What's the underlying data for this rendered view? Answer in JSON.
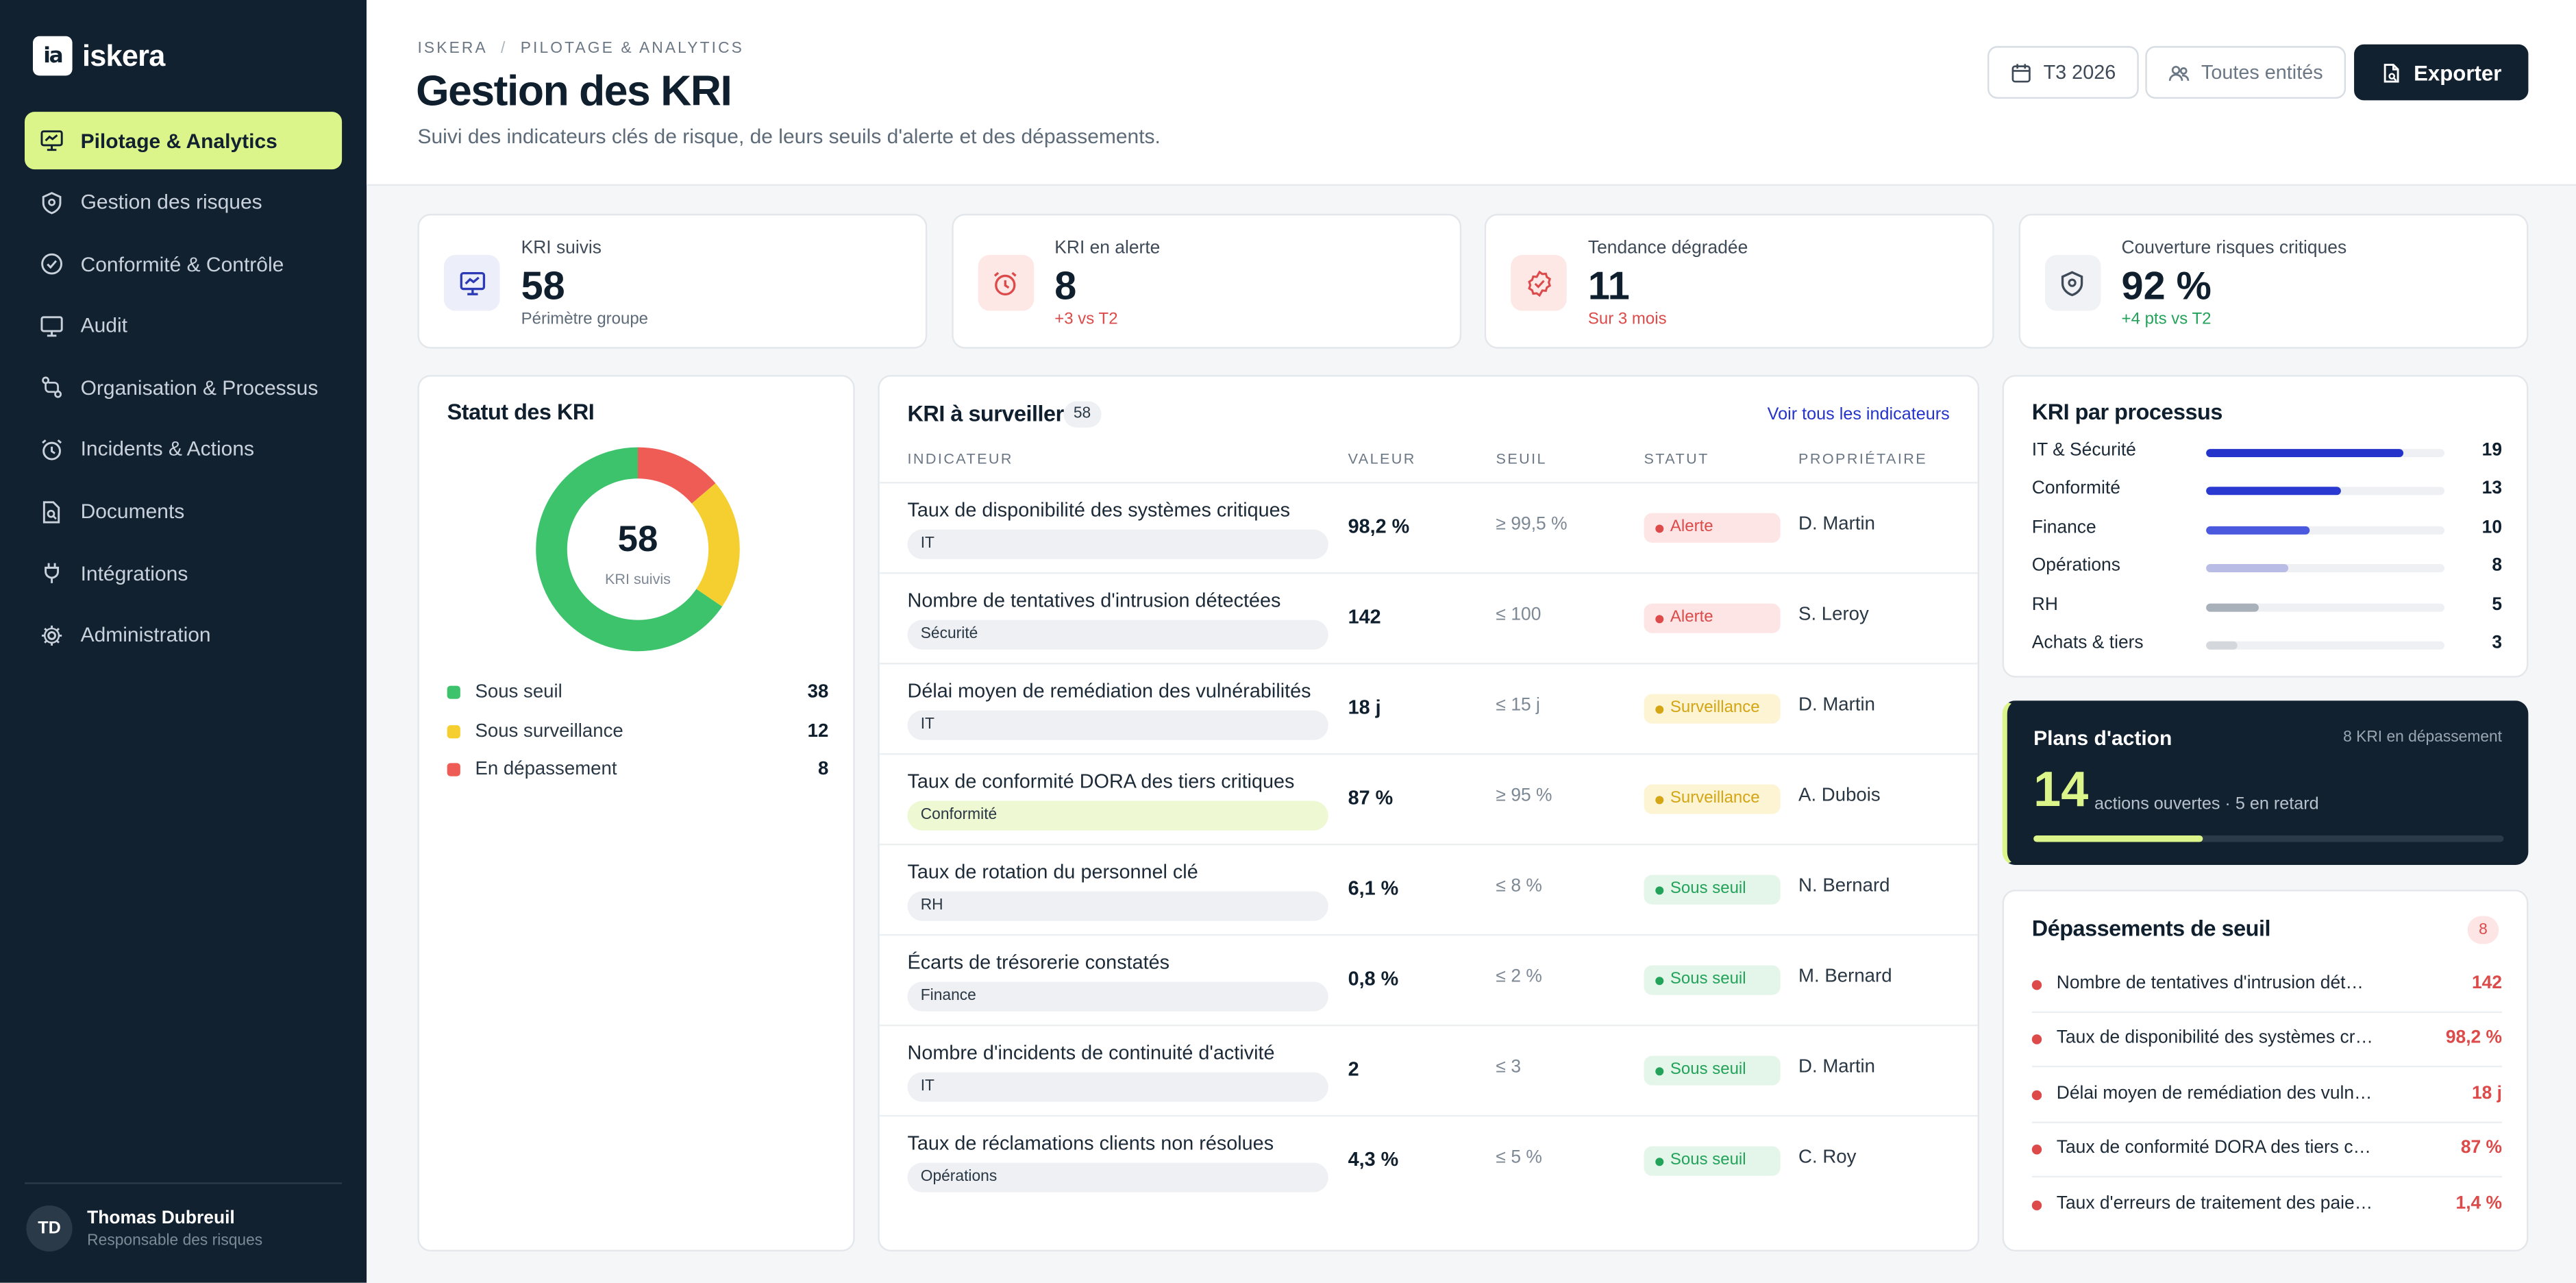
{
  "brand": {
    "name": "iskera",
    "mark": "ia"
  },
  "nav": [
    {
      "label": "Pilotage & Analytics",
      "icon": "chart-presentation-icon",
      "active": true
    },
    {
      "label": "Gestion des risques",
      "icon": "shield-icon"
    },
    {
      "label": "Conformité & Contrôle",
      "icon": "check-circle-icon"
    },
    {
      "label": "Audit",
      "icon": "monitor-icon"
    },
    {
      "label": "Organisation & Processus",
      "icon": "process-flow-icon"
    },
    {
      "label": "Incidents & Actions",
      "icon": "alarm-clock-icon"
    },
    {
      "label": "Documents",
      "icon": "document-search-icon"
    },
    {
      "label": "Intégrations",
      "icon": "plug-icon"
    },
    {
      "label": "Administration",
      "icon": "gear-icon"
    }
  ],
  "user": {
    "initials": "TD",
    "name": "Thomas Dubreuil",
    "role": "Responsable des risques"
  },
  "header": {
    "breadcrumb": [
      "ISKERA",
      "PILOTAGE & ANALYTICS"
    ],
    "title": "Gestion des KRI",
    "subtitle": "Suivi des indicateurs clés de risque, de leurs seuils d'alerte et des dépassements.",
    "period": "T3 2026",
    "entities": "Toutes entités",
    "export": "Exporter"
  },
  "kpis": [
    {
      "label": "KRI suivis",
      "value": "58",
      "sub": "Périmètre groupe",
      "icon": "chart-presentation-icon",
      "icon_bg": "#eceefa",
      "icon_color": "#2c3bb5",
      "sub_color": "#5d6a78"
    },
    {
      "label": "KRI en alerte",
      "value": "8",
      "sub": "+3 vs T2",
      "icon": "alarm-clock-icon",
      "icon_bg": "#fde8e6",
      "icon_color": "#dc4a4a",
      "sub_color": "#dc4a4a"
    },
    {
      "label": "Tendance dégradée",
      "value": "11",
      "sub": "Sur 3 mois",
      "icon": "trend-badge-icon",
      "icon_bg": "#fde8e6",
      "icon_color": "#dc4a4a",
      "sub_color": "#dc4a4a"
    },
    {
      "label": "Couverture risques critiques",
      "value": "92 %",
      "sub": "+4 pts vs T2",
      "icon": "shield-icon",
      "icon_bg": "#f0f2f5",
      "icon_color": "#3e4a57",
      "sub_color": "#23a25a"
    }
  ],
  "status_card": {
    "title": "Statut des KRI",
    "center_value": "58",
    "center_label": "KRI suivis",
    "segments": [
      {
        "label": "Sous seuil",
        "value": 38,
        "color": "#3cc36b"
      },
      {
        "label": "Sous surveillance",
        "value": 12,
        "color": "#f5cf2f"
      },
      {
        "label": "En dépassement",
        "value": 8,
        "color": "#ef5b55"
      }
    ]
  },
  "table": {
    "title": "KRI à surveiller",
    "count": "58",
    "link": "Voir tous les indicateurs",
    "columns": [
      "INDICATEUR",
      "VALEUR",
      "SEUIL",
      "STATUT",
      "PROPRIÉTAIRE"
    ],
    "rows": [
      {
        "name": "Taux de disponibilité des systèmes critiques",
        "tag": "IT",
        "value": "98,2 %",
        "threshold": "≥ 99,5 %",
        "status": "Alerte",
        "status_type": "alert",
        "owner": "D. Martin"
      },
      {
        "name": "Nombre de tentatives d'intrusion détectées",
        "tag": "Sécurité",
        "value": "142",
        "threshold": "≤ 100",
        "status": "Alerte",
        "status_type": "alert",
        "owner": "S. Leroy"
      },
      {
        "name": "Délai moyen de remédiation des vulnérabilités",
        "tag": "IT",
        "value": "18 j",
        "threshold": "≤ 15 j",
        "status": "Surveillance",
        "status_type": "watch",
        "owner": "D. Martin"
      },
      {
        "name": "Taux de conformité DORA des tiers critiques",
        "tag": "Conformité",
        "value": "87 %",
        "threshold": "≥ 95 %",
        "status": "Surveillance",
        "status_type": "watch",
        "owner": "A. Dubois"
      },
      {
        "name": "Taux de rotation du personnel clé",
        "tag": "RH",
        "value": "6,1 %",
        "threshold": "≤ 8 %",
        "status": "Sous seuil",
        "status_type": "ok",
        "owner": "N. Bernard"
      },
      {
        "name": "Écarts de trésorerie constatés",
        "tag": "Finance",
        "value": "0,8 %",
        "threshold": "≤ 2 %",
        "status": "Sous seuil",
        "status_type": "ok",
        "owner": "M. Bernard"
      },
      {
        "name": "Nombre d'incidents de continuité d'activité",
        "tag": "IT",
        "value": "2",
        "threshold": "≤ 3",
        "status": "Sous seuil",
        "status_type": "ok",
        "owner": "D. Martin"
      },
      {
        "name": "Taux de réclamations clients non résolues",
        "tag": "Opérations",
        "value": "4,3 %",
        "threshold": "≤ 5 %",
        "status": "Sous seuil",
        "status_type": "ok",
        "owner": "C. Roy"
      }
    ]
  },
  "process_card": {
    "title": "KRI par processus",
    "max": 23,
    "items": [
      {
        "label": "IT & Sécurité",
        "value": 19,
        "color": "#2433c9"
      },
      {
        "label": "Conformité",
        "value": 13,
        "color": "#2a3ad0"
      },
      {
        "label": "Finance",
        "value": 10,
        "color": "#4b59de"
      },
      {
        "label": "Opérations",
        "value": 8,
        "color": "#b9bde6"
      },
      {
        "label": "RH",
        "value": 5,
        "color": "#a8b0ba"
      },
      {
        "label": "Achats & tiers",
        "value": 3,
        "color": "#d4d8dd"
      }
    ]
  },
  "action_card": {
    "title": "Plans d'action",
    "meta": "8 KRI en dépassement",
    "value": "14",
    "text": "actions ouvertes · 5 en retard",
    "progress": 0.36
  },
  "overruns": {
    "title": "Dépassements de seuil",
    "count": "8",
    "items": [
      {
        "label": "Nombre de tentatives d'intrusion dét…",
        "value": "142"
      },
      {
        "label": "Taux de disponibilité des systèmes cri…",
        "value": "98,2 %"
      },
      {
        "label": "Délai moyen de remédiation des vuln…",
        "value": "18 j"
      },
      {
        "label": "Taux de conformité DORA des tiers cri…",
        "value": "87 %"
      },
      {
        "label": "Taux d'erreurs de traitement des paie…",
        "value": "1,4 %"
      }
    ]
  }
}
